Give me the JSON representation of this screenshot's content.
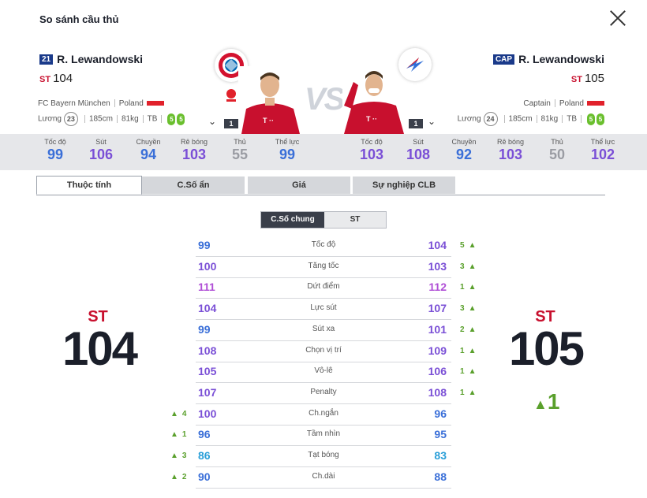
{
  "title": "So sánh cầu thủ",
  "left": {
    "season": "21",
    "season_color": "#1a3a8a",
    "name": "R. Lewandowski",
    "pos": "ST",
    "ovr": "104",
    "club": "FC Bayern München",
    "nation": "Poland",
    "level": "23",
    "height": "185cm",
    "weight": "81kg",
    "body": "TB",
    "foot_left": "5",
    "foot_right": "5",
    "count": "1",
    "stats": [
      {
        "label": "Tốc độ",
        "value": "99",
        "color": "#3a6fd8"
      },
      {
        "label": "Sút",
        "value": "106",
        "color": "#7a4fd6"
      },
      {
        "label": "Chuyền",
        "value": "94",
        "color": "#3a6fd8"
      },
      {
        "label": "Rê bóng",
        "value": "103",
        "color": "#7a4fd6"
      },
      {
        "label": "Thủ",
        "value": "55",
        "color": "#9a9ca3"
      },
      {
        "label": "Thể lực",
        "value": "99",
        "color": "#3a6fd8"
      }
    ],
    "big_pos": "ST",
    "big_ovr": "104"
  },
  "right": {
    "season": "CAP",
    "season_color": "#1a3a8a",
    "name": "R. Lewandowski",
    "pos": "ST",
    "ovr": "105",
    "club": "Captain",
    "nation": "Poland",
    "level": "24",
    "height": "185cm",
    "weight": "81kg",
    "body": "TB",
    "foot_left": "5",
    "foot_right": "5",
    "count": "1",
    "stats": [
      {
        "label": "Tốc độ",
        "value": "103",
        "color": "#7a4fd6"
      },
      {
        "label": "Sút",
        "value": "108",
        "color": "#7a4fd6"
      },
      {
        "label": "Chuyền",
        "value": "92",
        "color": "#3a6fd8"
      },
      {
        "label": "Rê bóng",
        "value": "103",
        "color": "#7a4fd6"
      },
      {
        "label": "Thủ",
        "value": "50",
        "color": "#9a9ca3"
      },
      {
        "label": "Thể lực",
        "value": "102",
        "color": "#7a4fd6"
      }
    ],
    "big_pos": "ST",
    "big_ovr": "105",
    "ovr_diff": "1"
  },
  "vs": "VS",
  "tabs": [
    "Thuộc tính",
    "C.Số ẩn",
    "Giá",
    "Sự nghiệp CLB"
  ],
  "segment": [
    "C.Số chung",
    "ST"
  ],
  "attributes": [
    {
      "name": "Tốc độ",
      "left": "99",
      "right": "104",
      "lcolor": "#3a6fd8",
      "rcolor": "#7a4fd6",
      "rdiff": "5"
    },
    {
      "name": "Tăng tốc",
      "left": "100",
      "right": "103",
      "lcolor": "#7a4fd6",
      "rcolor": "#7a4fd6",
      "rdiff": "3"
    },
    {
      "name": "Dứt điểm",
      "left": "111",
      "right": "112",
      "lcolor": "#b04fd6",
      "rcolor": "#b04fd6",
      "rdiff": "1"
    },
    {
      "name": "Lực sút",
      "left": "104",
      "right": "107",
      "lcolor": "#7a4fd6",
      "rcolor": "#7a4fd6",
      "rdiff": "3"
    },
    {
      "name": "Sút xa",
      "left": "99",
      "right": "101",
      "lcolor": "#3a6fd8",
      "rcolor": "#7a4fd6",
      "rdiff": "2"
    },
    {
      "name": "Chọn vị trí",
      "left": "108",
      "right": "109",
      "lcolor": "#7a4fd6",
      "rcolor": "#7a4fd6",
      "rdiff": "1"
    },
    {
      "name": "Vô-lê",
      "left": "105",
      "right": "106",
      "lcolor": "#7a4fd6",
      "rcolor": "#7a4fd6",
      "rdiff": "1"
    },
    {
      "name": "Penalty",
      "left": "107",
      "right": "108",
      "lcolor": "#7a4fd6",
      "rcolor": "#7a4fd6",
      "rdiff": "1"
    },
    {
      "name": "Ch.ngắn",
      "left": "100",
      "right": "96",
      "lcolor": "#7a4fd6",
      "rcolor": "#3a6fd8",
      "ldiff": "4"
    },
    {
      "name": "Tầm nhìn",
      "left": "96",
      "right": "95",
      "lcolor": "#3a6fd8",
      "rcolor": "#3a6fd8",
      "ldiff": "1"
    },
    {
      "name": "Tạt bóng",
      "left": "86",
      "right": "83",
      "lcolor": "#2a9fd8",
      "rcolor": "#2a9fd8",
      "ldiff": "3"
    },
    {
      "name": "Ch.dài",
      "left": "90",
      "right": "88",
      "lcolor": "#3a6fd8",
      "rcolor": "#3a6fd8",
      "ldiff": "2"
    }
  ],
  "arrow": "▲",
  "colors": {
    "up": "#5aa02c",
    "pos": "#c8102e",
    "bayern_red": "#d3122f"
  }
}
